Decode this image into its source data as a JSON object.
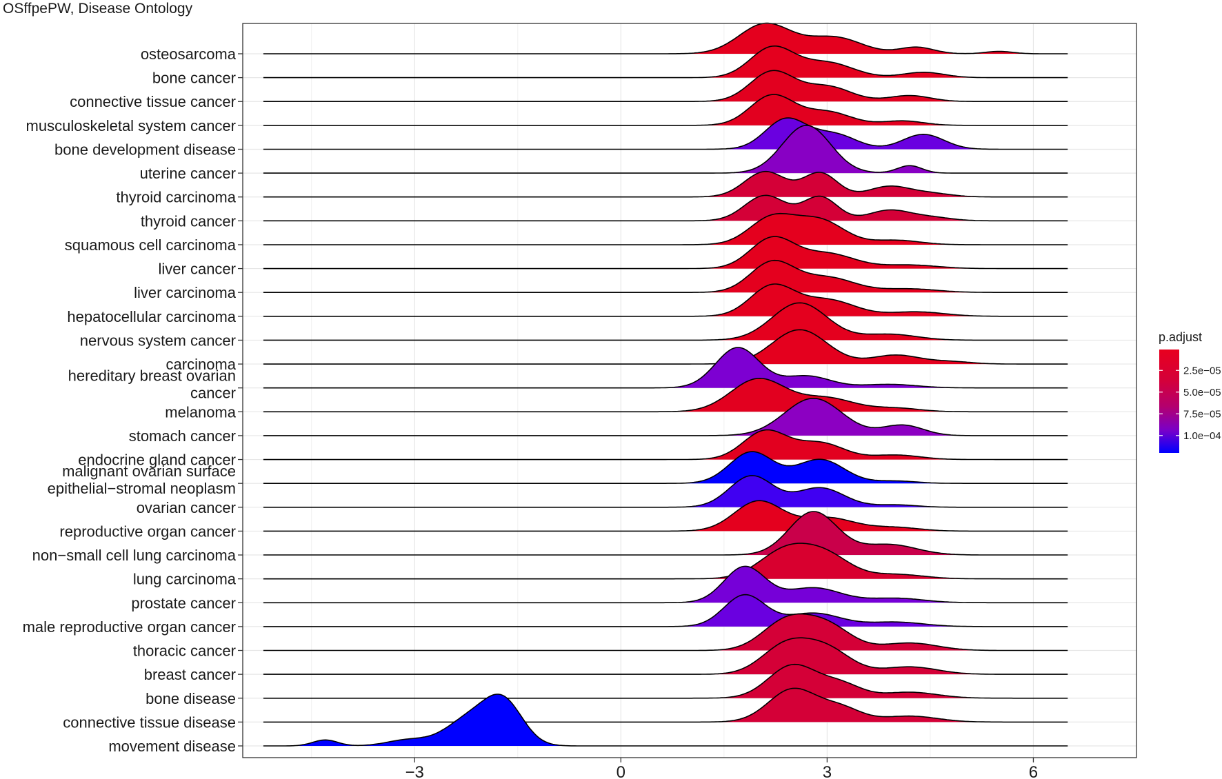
{
  "chart_data": {
    "type": "ridgeline",
    "title": "OSffpePW, Disease Ontology",
    "xlabel": "",
    "ylabel": "",
    "xlim": [
      -5.5,
      7.5
    ],
    "xticks": [
      -3,
      0,
      3,
      6
    ],
    "x_tick_labels": [
      "−3",
      "0",
      "3",
      "6"
    ],
    "grid": true,
    "legend": {
      "title": "p.adjust",
      "position": "right",
      "range": [
        1e-06,
        0.00012
      ],
      "ticks": [
        2.5e-05,
        5e-05,
        7.5e-05,
        0.0001
      ],
      "tick_labels": [
        "2.5e−05",
        "5.0e−05",
        "7.5e−05",
        "1.0e−04"
      ],
      "colors": {
        "low": "#e8001e",
        "high": "#0000ff"
      }
    },
    "series": [
      {
        "label": [
          "osteosarcoma"
        ],
        "p_adjust": 1e-06,
        "color": "#e4001e",
        "peaks": [
          [
            2.1,
            0.38,
            1.0
          ],
          [
            3.1,
            0.4,
            0.55
          ],
          [
            4.3,
            0.25,
            0.22
          ],
          [
            5.5,
            0.2,
            0.08
          ]
        ]
      },
      {
        "label": [
          "bone cancer"
        ],
        "p_adjust": 1e-06,
        "color": "#e4001e",
        "peaks": [
          [
            2.2,
            0.32,
            1.0
          ],
          [
            3.0,
            0.38,
            0.5
          ],
          [
            4.4,
            0.3,
            0.18
          ]
        ]
      },
      {
        "label": [
          "connective tissue cancer"
        ],
        "p_adjust": 2e-06,
        "color": "#e2001f",
        "peaks": [
          [
            2.2,
            0.32,
            1.0
          ],
          [
            3.0,
            0.35,
            0.5
          ],
          [
            4.2,
            0.3,
            0.2
          ]
        ]
      },
      {
        "label": [
          "musculoskeletal system cancer"
        ],
        "p_adjust": 2e-06,
        "color": "#e2001f",
        "peaks": [
          [
            2.2,
            0.32,
            1.0
          ],
          [
            3.0,
            0.35,
            0.45
          ],
          [
            4.1,
            0.3,
            0.15
          ]
        ]
      },
      {
        "label": [
          "bone development disease"
        ],
        "p_adjust": 0.00011,
        "color": "#6a00e0",
        "peaks": [
          [
            2.4,
            0.3,
            1.0
          ],
          [
            3.1,
            0.32,
            0.5
          ],
          [
            4.4,
            0.3,
            0.5
          ]
        ]
      },
      {
        "label": [
          "uterine cancer"
        ],
        "p_adjust": 9.5e-05,
        "color": "#8800c4",
        "peaks": [
          [
            2.7,
            0.35,
            1.6
          ],
          [
            4.2,
            0.18,
            0.25
          ]
        ]
      },
      {
        "label": [
          "thyroid carcinoma"
        ],
        "p_adjust": 2e-05,
        "color": "#d40037",
        "peaks": [
          [
            2.1,
            0.3,
            0.85
          ],
          [
            2.9,
            0.25,
            0.8
          ],
          [
            3.9,
            0.3,
            0.35
          ],
          [
            4.5,
            0.3,
            0.12
          ]
        ]
      },
      {
        "label": [
          "thyroid cancer"
        ],
        "p_adjust": 2e-05,
        "color": "#d40037",
        "peaks": [
          [
            2.1,
            0.3,
            0.85
          ],
          [
            2.9,
            0.25,
            0.8
          ],
          [
            3.9,
            0.3,
            0.35
          ],
          [
            4.5,
            0.3,
            0.12
          ]
        ]
      },
      {
        "label": [
          "squamous cell carcinoma"
        ],
        "p_adjust": 1e-06,
        "color": "#e4001e",
        "peaks": [
          [
            2.2,
            0.33,
            0.9
          ],
          [
            2.9,
            0.35,
            0.8
          ],
          [
            4.0,
            0.35,
            0.15
          ]
        ]
      },
      {
        "label": [
          "liver cancer"
        ],
        "p_adjust": 1e-06,
        "color": "#e4001e",
        "peaks": [
          [
            2.2,
            0.32,
            1.0
          ],
          [
            3.0,
            0.4,
            0.5
          ],
          [
            4.2,
            0.4,
            0.12
          ]
        ]
      },
      {
        "label": [
          "liver carcinoma"
        ],
        "p_adjust": 1e-06,
        "color": "#e4001e",
        "peaks": [
          [
            2.2,
            0.32,
            1.0
          ],
          [
            3.0,
            0.4,
            0.5
          ],
          [
            4.2,
            0.4,
            0.12
          ]
        ]
      },
      {
        "label": [
          "hepatocellular carcinoma"
        ],
        "p_adjust": 1e-06,
        "color": "#e4001e",
        "peaks": [
          [
            2.2,
            0.32,
            1.0
          ],
          [
            3.0,
            0.4,
            0.55
          ],
          [
            4.3,
            0.4,
            0.15
          ]
        ]
      },
      {
        "label": [
          "nervous system cancer"
        ],
        "p_adjust": 1e-06,
        "color": "#e4001e",
        "peaks": [
          [
            2.6,
            0.4,
            1.25
          ],
          [
            3.9,
            0.4,
            0.2
          ]
        ]
      },
      {
        "label": [
          "carcinoma"
        ],
        "p_adjust": 1e-06,
        "color": "#e4001e",
        "peaks": [
          [
            2.6,
            0.4,
            1.15
          ],
          [
            4.0,
            0.35,
            0.3
          ],
          [
            4.8,
            0.3,
            0.08
          ]
        ]
      },
      {
        "label": [
          "hereditary breast ovarian",
          "cancer"
        ],
        "p_adjust": 0.0001,
        "color": "#7d00d2",
        "peaks": [
          [
            1.7,
            0.32,
            1.35
          ],
          [
            2.7,
            0.35,
            0.4
          ],
          [
            3.9,
            0.4,
            0.12
          ]
        ]
      },
      {
        "label": [
          "melanoma"
        ],
        "p_adjust": 2e-06,
        "color": "#e2001f",
        "peaks": [
          [
            2.0,
            0.4,
            1.1
          ],
          [
            3.0,
            0.4,
            0.45
          ],
          [
            4.0,
            0.35,
            0.12
          ]
        ]
      },
      {
        "label": [
          "stomach cancer"
        ],
        "p_adjust": 8.5e-05,
        "color": "#8c00c2",
        "peaks": [
          [
            2.8,
            0.42,
            1.25
          ],
          [
            4.1,
            0.3,
            0.35
          ]
        ]
      },
      {
        "label": [
          "endocrine gland cancer"
        ],
        "p_adjust": 2e-06,
        "color": "#e2001f",
        "peaks": [
          [
            2.1,
            0.32,
            0.95
          ],
          [
            2.9,
            0.35,
            0.55
          ],
          [
            4.0,
            0.35,
            0.15
          ]
        ]
      },
      {
        "label": [
          "malignant ovarian surface",
          "epithelial−stromal neoplasm"
        ],
        "p_adjust": 0.00012,
        "color": "#0000ff",
        "peaks": [
          [
            1.9,
            0.32,
            1.05
          ],
          [
            2.9,
            0.35,
            0.8
          ],
          [
            4.0,
            0.3,
            0.08
          ]
        ]
      },
      {
        "label": [
          "ovarian cancer"
        ],
        "p_adjust": 0.000115,
        "color": "#4000f2",
        "peaks": [
          [
            1.9,
            0.32,
            1.05
          ],
          [
            2.9,
            0.35,
            0.65
          ],
          [
            4.0,
            0.3,
            0.08
          ]
        ]
      },
      {
        "label": [
          "reproductive organ cancer"
        ],
        "p_adjust": 1e-06,
        "color": "#e4001e",
        "peaks": [
          [
            2.0,
            0.35,
            1.0
          ],
          [
            3.0,
            0.4,
            0.45
          ],
          [
            4.0,
            0.35,
            0.12
          ]
        ]
      },
      {
        "label": [
          "non−small cell lung carcinoma"
        ],
        "p_adjust": 3e-05,
        "color": "#c9004a",
        "peaks": [
          [
            2.8,
            0.35,
            1.45
          ],
          [
            3.9,
            0.4,
            0.35
          ]
        ]
      },
      {
        "label": [
          "lung carcinoma"
        ],
        "p_adjust": 1.5e-05,
        "color": "#d8002f",
        "peaks": [
          [
            2.4,
            0.38,
            0.95
          ],
          [
            3.0,
            0.35,
            0.7
          ],
          [
            4.0,
            0.4,
            0.15
          ]
        ]
      },
      {
        "label": [
          "prostate cancer"
        ],
        "p_adjust": 0.0001,
        "color": "#7600d8",
        "peaks": [
          [
            1.8,
            0.3,
            1.2
          ],
          [
            2.8,
            0.4,
            0.5
          ],
          [
            4.0,
            0.4,
            0.15
          ]
        ]
      },
      {
        "label": [
          "male reproductive organ cancer"
        ],
        "p_adjust": 0.000105,
        "color": "#6a00e0",
        "peaks": [
          [
            1.8,
            0.3,
            1.05
          ],
          [
            2.8,
            0.4,
            0.45
          ],
          [
            4.0,
            0.4,
            0.15
          ]
        ]
      },
      {
        "label": [
          "thoracic cancer"
        ],
        "p_adjust": 2e-05,
        "color": "#d40037",
        "peaks": [
          [
            2.4,
            0.35,
            0.95
          ],
          [
            3.0,
            0.35,
            0.8
          ],
          [
            4.2,
            0.4,
            0.25
          ]
        ]
      },
      {
        "label": [
          "breast cancer"
        ],
        "p_adjust": 2e-05,
        "color": "#d40037",
        "peaks": [
          [
            2.4,
            0.35,
            0.95
          ],
          [
            3.0,
            0.35,
            0.8
          ],
          [
            4.2,
            0.4,
            0.25
          ]
        ]
      },
      {
        "label": [
          "bone disease"
        ],
        "p_adjust": 2e-05,
        "color": "#d40037",
        "peaks": [
          [
            2.5,
            0.35,
            1.1
          ],
          [
            3.2,
            0.3,
            0.45
          ],
          [
            4.2,
            0.4,
            0.2
          ]
        ]
      },
      {
        "label": [
          "connective tissue disease"
        ],
        "p_adjust": 2e-05,
        "color": "#d40037",
        "peaks": [
          [
            2.5,
            0.35,
            1.1
          ],
          [
            3.2,
            0.3,
            0.45
          ],
          [
            4.2,
            0.4,
            0.2
          ]
        ]
      },
      {
        "label": [
          "movement disease"
        ],
        "p_adjust": 0.000125,
        "color": "#0000ff",
        "peaks": [
          [
            -4.3,
            0.18,
            0.2
          ],
          [
            -3.1,
            0.3,
            0.2
          ],
          [
            -2.2,
            0.35,
            0.9
          ],
          [
            -1.7,
            0.28,
            1.35
          ]
        ]
      }
    ]
  }
}
